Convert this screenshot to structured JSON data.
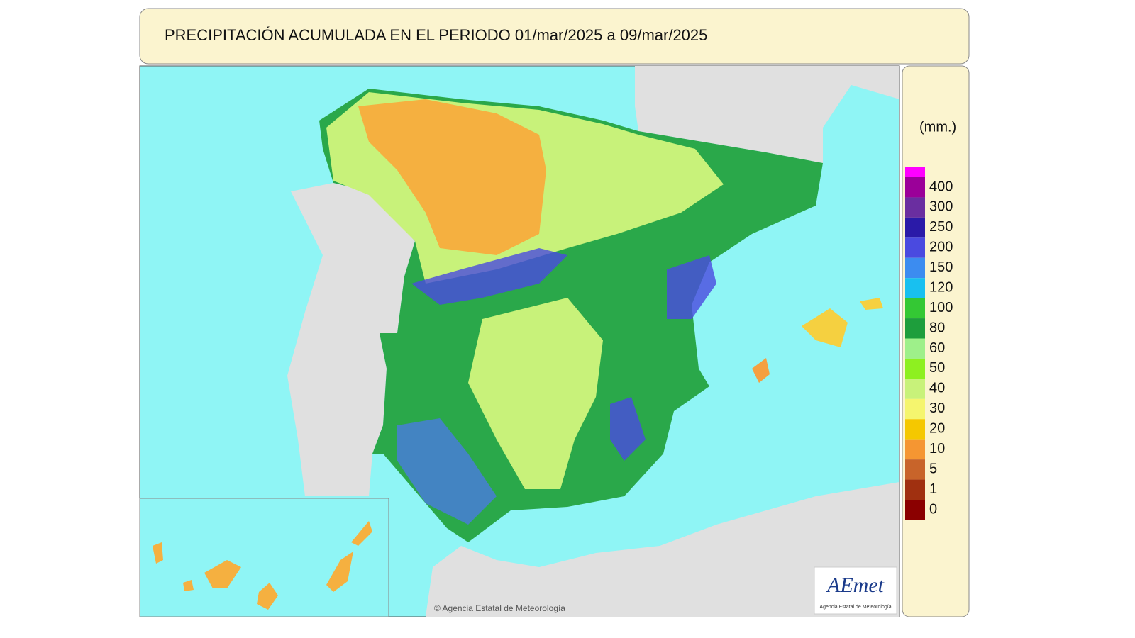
{
  "header": {
    "title": "PRECIPITACIÓN ACUMULADA EN EL PERIODO  01/mar/2025 a 09/mar/2025"
  },
  "legend": {
    "unit": "(mm.)",
    "items": [
      {
        "label": "400",
        "color": "#9b0099"
      },
      {
        "label": "300",
        "color": "#6a2ea0"
      },
      {
        "label": "250",
        "color": "#2a1aa8"
      },
      {
        "label": "200",
        "color": "#4a4ae0"
      },
      {
        "label": "150",
        "color": "#3c8cf0"
      },
      {
        "label": "120",
        "color": "#18c0f0"
      },
      {
        "label": "100",
        "color": "#34c834"
      },
      {
        "label": "80",
        "color": "#1e9e3c"
      },
      {
        "label": "60",
        "color": "#9ef08a"
      },
      {
        "label": "50",
        "color": "#8ef020"
      },
      {
        "label": "40",
        "color": "#c8f27a"
      },
      {
        "label": "30",
        "color": "#f5f56e"
      },
      {
        "label": "20",
        "color": "#f5c800"
      },
      {
        "label": "10",
        "color": "#f59632"
      },
      {
        "label": "5",
        "color": "#c8642a"
      },
      {
        "label": "1",
        "color": "#a03010"
      },
      {
        "label": "0",
        "color": "#8b0000"
      }
    ]
  },
  "footer": {
    "credit": "© Agencia Estatal de Meteorología",
    "logo": "AEmet",
    "logo_caption": "Agencia Estatal de Meteorología"
  }
}
